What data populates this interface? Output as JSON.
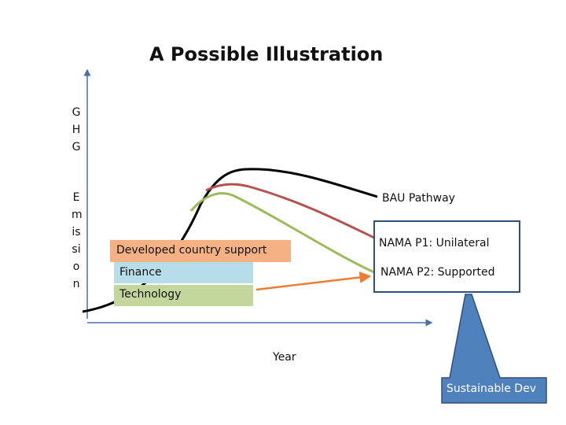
{
  "title": "A Possible Illustration",
  "y_axis": {
    "line1": "GHG",
    "line2": "Emission"
  },
  "x_axis": {
    "label": "Year"
  },
  "pathways": {
    "bau": "BAU Pathway",
    "p1": "NAMA P1: Unilateral",
    "p2": "NAMA P2: Supported"
  },
  "support": {
    "header": "Developed country support",
    "items": [
      "Finance",
      "Technology"
    ]
  },
  "callout": "Sustainable Dev"
}
